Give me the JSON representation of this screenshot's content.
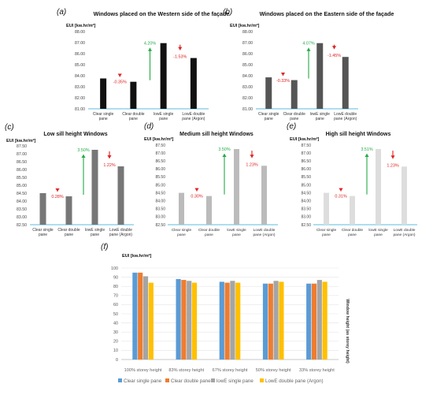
{
  "chart_data": [
    {
      "id": "a",
      "panel_label": "(a)",
      "type": "bar",
      "title": "Windows placed on the Western side of the façade",
      "ylabel": "EUI [kw.hr/m²]",
      "categories": [
        "Clear single pane",
        "Clear double pane",
        "lowE single pane",
        "LowE double pane (Argon)"
      ],
      "values": [
        83.75,
        83.45,
        86.95,
        85.6
      ],
      "ylim": [
        81.0,
        88.0
      ],
      "yticks": [
        "81.00",
        "82.00",
        "83.00",
        "84.00",
        "85.00",
        "86.00",
        "87.00",
        "88.00"
      ],
      "color": "#111111",
      "annotations": [
        "-0.35%",
        "4.20%",
        "-1.53%"
      ]
    },
    {
      "id": "b",
      "panel_label": "(b)",
      "type": "bar",
      "title": "Windows placed on the Eastern side of the façade",
      "ylabel": "EUI [kw.hr/m²]",
      "categories": [
        "Clear single pane",
        "Clear double pane",
        "lowE single pane",
        "LowE double pane (Argon)"
      ],
      "values": [
        83.85,
        83.6,
        86.95,
        85.7
      ],
      "ylim": [
        81.0,
        88.0
      ],
      "yticks": [
        "81.00",
        "82.00",
        "83.00",
        "84.00",
        "85.00",
        "86.00",
        "87.00",
        "88.00"
      ],
      "color": "#555555",
      "annotations": [
        "-0.33%",
        "4.07%",
        "-1.45%"
      ]
    },
    {
      "id": "c",
      "panel_label": "(c)",
      "type": "bar",
      "title": "Low sill height Windows",
      "ylabel": "EUI [kw.hr/m²]",
      "categories": [
        "Clear single pane",
        "Clear double pane",
        "lowE single pane",
        "LowE double pane (Argon)"
      ],
      "values": [
        84.5,
        84.3,
        87.25,
        86.2
      ],
      "ylim": [
        82.5,
        87.5
      ],
      "yticks": [
        "82.50",
        "83.00",
        "83.50",
        "84.00",
        "84.50",
        "85.00",
        "85.50",
        "86.00",
        "86.50",
        "87.00",
        "87.50"
      ],
      "color": "#777777",
      "annotations": [
        "0.28%",
        "3.50%",
        "1.22%"
      ]
    },
    {
      "id": "d",
      "panel_label": "(d)",
      "type": "bar",
      "title": "Medium sill height Windows",
      "ylabel": "EUI [kw.hr/m²]",
      "categories": [
        "Clear single pane",
        "Clear double pane",
        "lowE single pane",
        "LowE double pane (Argon)"
      ],
      "values": [
        84.5,
        84.3,
        87.25,
        86.2
      ],
      "ylim": [
        82.5,
        87.5
      ],
      "yticks": [
        "82.50",
        "83.00",
        "83.50",
        "84.00",
        "84.50",
        "85.00",
        "85.50",
        "86.00",
        "86.50",
        "87.00",
        "87.50"
      ],
      "color": "#bbbbbb",
      "annotations": [
        "0.30%",
        "3.50%",
        "1.23%"
      ]
    },
    {
      "id": "e",
      "panel_label": "(e)",
      "type": "bar",
      "title": "High sill height Windows",
      "ylabel": "EUI [kw.hr/m²]",
      "categories": [
        "Clear single pane",
        "Clear double pane",
        "lowE single pane",
        "LowE double pane (Argon)"
      ],
      "values": [
        84.5,
        84.3,
        87.25,
        86.15
      ],
      "ylim": [
        82.5,
        87.5
      ],
      "yticks": [
        "82.50",
        "83.00",
        "83.50",
        "84.00",
        "84.50",
        "85.00",
        "85.50",
        "86.00",
        "86.50",
        "87.00",
        "87.50"
      ],
      "color": "#dddddd",
      "annotations": [
        "0.31%",
        "3.51%",
        "1.23%"
      ]
    },
    {
      "id": "f",
      "panel_label": "(f)",
      "type": "bar",
      "title": "",
      "ylabel": "EUI [kw.hr/m²]",
      "categories": [
        "100% storey height",
        "83% storey height",
        "67% storey height",
        "50% storey height",
        "33% storey height"
      ],
      "series": [
        {
          "name": "Clear single pane",
          "color": "#5b9bd5",
          "values": [
            95,
            88,
            85,
            83,
            83
          ]
        },
        {
          "name": "Clear double pane",
          "color": "#ed7d31",
          "values": [
            95,
            87,
            84,
            83,
            83
          ]
        },
        {
          "name": "lowE single pane",
          "color": "#a5a5a5",
          "values": [
            91,
            86,
            86,
            86,
            87
          ]
        },
        {
          "name": "LowE double pane (Argon)",
          "color": "#ffc000",
          "values": [
            84,
            84,
            84,
            85,
            85
          ]
        }
      ],
      "ylim": [
        0,
        100
      ],
      "yticks": [
        "0",
        "10",
        "20",
        "30",
        "40",
        "50",
        "60",
        "70",
        "80",
        "90",
        "100"
      ],
      "side_label": "Window height (as storey height)",
      "legend_position": "bottom"
    }
  ]
}
